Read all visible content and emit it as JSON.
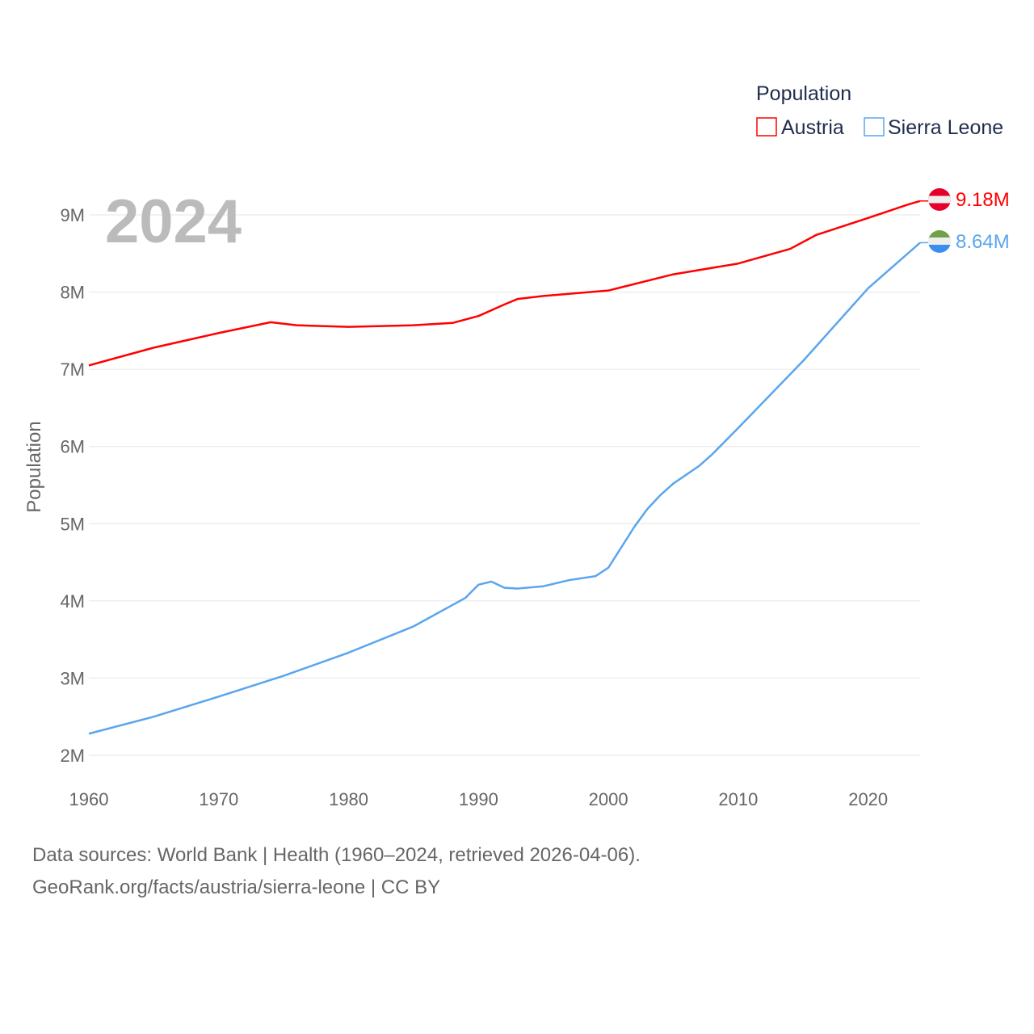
{
  "chart_data": {
    "type": "line",
    "title": "Population",
    "year_label": "2024",
    "ylabel": "Population",
    "xlabel": "",
    "xlim": [
      1960,
      2024
    ],
    "ylim": [
      2000000,
      9000000
    ],
    "x_ticks": [
      "1960",
      "1970",
      "1980",
      "1990",
      "2000",
      "2010",
      "2020"
    ],
    "y_ticks": [
      "2M",
      "3M",
      "4M",
      "5M",
      "6M",
      "7M",
      "8M",
      "9M"
    ],
    "grid": true,
    "legend_position": "top-right",
    "series": [
      {
        "name": "Austria",
        "color": "#ff0000",
        "end_label": "9.18M",
        "x": [
          1960,
          1965,
          1970,
          1974,
          1976,
          1980,
          1985,
          1988,
          1990,
          1992,
          1993,
          1995,
          2000,
          2005,
          2010,
          2014,
          2016,
          2020,
          2023,
          2024
        ],
        "values": [
          7.05,
          7.28,
          7.47,
          7.61,
          7.57,
          7.55,
          7.57,
          7.6,
          7.69,
          7.84,
          7.91,
          7.95,
          8.02,
          8.23,
          8.37,
          8.56,
          8.74,
          8.96,
          9.13,
          9.18
        ]
      },
      {
        "name": "Sierra Leone",
        "color": "#5aa5ee",
        "end_label": "8.64M",
        "x": [
          1960,
          1965,
          1970,
          1975,
          1980,
          1985,
          1989,
          1990,
          1991,
          1992,
          1993,
          1995,
          1997,
          1999,
          2000,
          2002,
          2003,
          2004,
          2005,
          2007,
          2008,
          2010,
          2015,
          2020,
          2024
        ],
        "values": [
          2.28,
          2.5,
          2.76,
          3.03,
          3.33,
          3.67,
          4.04,
          4.21,
          4.25,
          4.17,
          4.16,
          4.19,
          4.27,
          4.32,
          4.43,
          4.96,
          5.19,
          5.37,
          5.52,
          5.75,
          5.9,
          6.24,
          7.11,
          8.05,
          8.64
        ]
      }
    ],
    "value_unit": "millions"
  },
  "footer": {
    "line1": "Data sources: World Bank | Health (1960–2024, retrieved 2026-04-06).",
    "line2": "GeoRank.org/facts/austria/sierra-leone | CC BY"
  }
}
